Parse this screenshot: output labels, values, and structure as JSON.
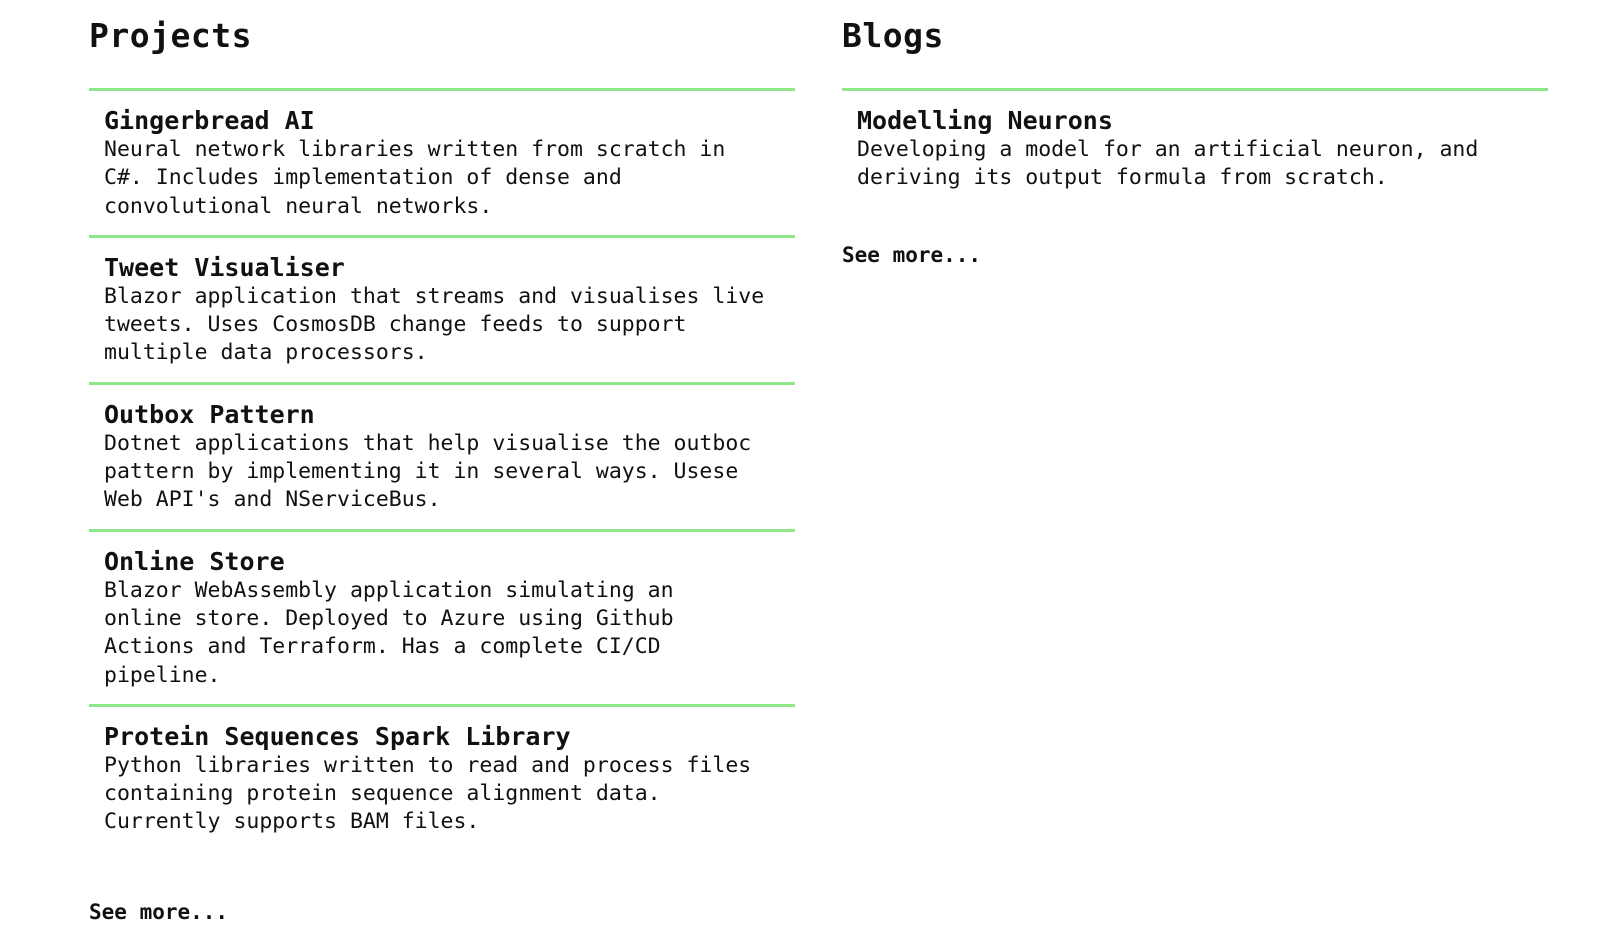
{
  "projects": {
    "title": "Projects",
    "items": [
      {
        "title": "Gingerbread AI",
        "description": "Neural network libraries written from scratch in C#. Includes implementation of dense and convolutional neural networks."
      },
      {
        "title": "Tweet Visualiser",
        "description": "Blazor application that streams and visualises live tweets. Uses CosmosDB change feeds to support multiple data processors."
      },
      {
        "title": "Outbox Pattern",
        "description": "Dotnet applications that help visualise the outboc pattern by implementing it in several ways. Usese Web API's and NServiceBus."
      },
      {
        "title": "Online Store",
        "description": "Blazor WebAssembly application simulating an online store. Deployed to Azure using Github Actions and Terraform. Has a complete CI/CD pipeline."
      },
      {
        "title": "Protein Sequences Spark Library",
        "description": "Python libraries written to read and process files containing protein sequence alignment data. Currently supports BAM files."
      }
    ],
    "see_more": "See more..."
  },
  "blogs": {
    "title": "Blogs",
    "items": [
      {
        "title": "Modelling Neurons",
        "description": "Developing a model for an artificial neuron, and deriving its output formula from scratch."
      }
    ],
    "see_more": "See more..."
  },
  "colors": {
    "divider": "#8ee88a",
    "text": "#111111",
    "background": "#ffffff"
  }
}
